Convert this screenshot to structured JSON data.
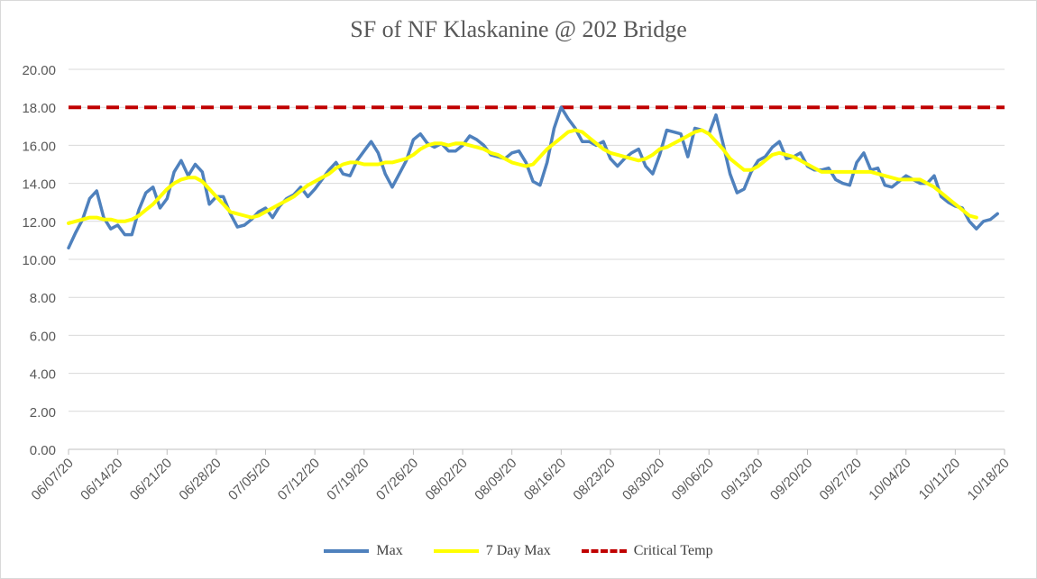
{
  "chart_data": {
    "type": "line",
    "title": "SF of NF Klaskanine @ 202 Bridge",
    "xlabel": "",
    "ylabel": "",
    "ylim": [
      0,
      20
    ],
    "yticks": [
      "0.00",
      "2.00",
      "4.00",
      "6.00",
      "8.00",
      "10.00",
      "12.00",
      "14.00",
      "16.00",
      "18.00",
      "20.00"
    ],
    "x_start": "06/07/20",
    "x_end": "10/18/20",
    "xticks": [
      "06/07/20",
      "06/14/20",
      "06/21/20",
      "06/28/20",
      "07/05/20",
      "07/12/20",
      "07/19/20",
      "07/26/20",
      "08/02/20",
      "08/09/20",
      "08/16/20",
      "08/23/20",
      "08/30/20",
      "09/06/20",
      "09/13/20",
      "09/20/20",
      "09/27/20",
      "10/04/20",
      "10/11/20",
      "10/18/20"
    ],
    "gridlines": true,
    "legend_position": "bottom",
    "series": [
      {
        "name": "Max",
        "color": "#4f81bd",
        "style": "solid",
        "values": [
          10.6,
          11.4,
          12.1,
          13.2,
          13.6,
          12.2,
          11.6,
          11.8,
          11.3,
          11.3,
          12.6,
          13.5,
          13.8,
          12.7,
          13.2,
          14.6,
          15.2,
          14.4,
          15.0,
          14.6,
          12.9,
          13.3,
          13.3,
          12.4,
          11.7,
          11.8,
          12.1,
          12.5,
          12.7,
          12.2,
          12.8,
          13.2,
          13.4,
          13.8,
          13.3,
          13.7,
          14.2,
          14.7,
          15.1,
          14.5,
          14.4,
          15.2,
          15.7,
          16.2,
          15.6,
          14.5,
          13.8,
          14.5,
          15.2,
          16.3,
          16.6,
          16.1,
          15.9,
          16.1,
          15.7,
          15.7,
          16.0,
          16.5,
          16.3,
          16.0,
          15.5,
          15.4,
          15.3,
          15.6,
          15.7,
          15.1,
          14.1,
          13.9,
          15.1,
          16.9,
          18.0,
          17.4,
          16.9,
          16.2,
          16.2,
          16.0,
          16.2,
          15.3,
          14.9,
          15.3,
          15.6,
          15.8,
          14.9,
          14.5,
          15.5,
          16.8,
          16.7,
          16.6,
          15.4,
          16.9,
          16.8,
          16.6,
          17.6,
          16.1,
          14.5,
          13.5,
          13.7,
          14.6,
          15.2,
          15.4,
          15.9,
          16.2,
          15.3,
          15.4,
          15.6,
          14.9,
          14.7,
          14.7,
          14.8,
          14.2,
          14.0,
          13.9,
          15.1,
          15.6,
          14.7,
          14.8,
          13.9,
          13.8,
          14.1,
          14.4,
          14.2,
          14.0,
          14.0,
          14.4,
          13.3,
          13.0,
          12.8,
          12.7,
          12.0,
          11.6,
          12.0,
          12.1,
          12.4
        ]
      },
      {
        "name": "7 Day Max",
        "color": "#ffff00",
        "style": "solid",
        "values": [
          11.9,
          12.0,
          12.1,
          12.2,
          12.2,
          12.1,
          12.1,
          12.0,
          12.0,
          12.1,
          12.3,
          12.6,
          12.9,
          13.3,
          13.7,
          14.0,
          14.2,
          14.3,
          14.3,
          14.1,
          13.7,
          13.3,
          12.9,
          12.5,
          12.4,
          12.3,
          12.2,
          12.3,
          12.5,
          12.7,
          12.9,
          13.1,
          13.3,
          13.6,
          13.9,
          14.1,
          14.3,
          14.5,
          14.8,
          15.0,
          15.1,
          15.1,
          15.0,
          15.0,
          15.0,
          15.1,
          15.1,
          15.2,
          15.3,
          15.5,
          15.8,
          16.0,
          16.1,
          16.1,
          16.0,
          16.1,
          16.1,
          16.0,
          15.9,
          15.8,
          15.6,
          15.5,
          15.3,
          15.1,
          15.0,
          14.9,
          15.0,
          15.4,
          15.8,
          16.1,
          16.4,
          16.7,
          16.8,
          16.7,
          16.4,
          16.1,
          15.8,
          15.6,
          15.5,
          15.4,
          15.3,
          15.2,
          15.3,
          15.5,
          15.8,
          15.9,
          16.1,
          16.3,
          16.5,
          16.7,
          16.8,
          16.6,
          16.2,
          15.8,
          15.3,
          15.0,
          14.7,
          14.7,
          14.9,
          15.2,
          15.5,
          15.6,
          15.5,
          15.4,
          15.2,
          15.0,
          14.8,
          14.6,
          14.6,
          14.6,
          14.6,
          14.6,
          14.6,
          14.6,
          14.6,
          14.5,
          14.4,
          14.3,
          14.2,
          14.2,
          14.2,
          14.2,
          14.0,
          13.8,
          13.5,
          13.2,
          12.9,
          12.6,
          12.3,
          12.2
        ]
      },
      {
        "name": "Critical Temp",
        "color": "#c00000",
        "style": "dashed",
        "values": [
          18,
          18
        ]
      }
    ]
  }
}
